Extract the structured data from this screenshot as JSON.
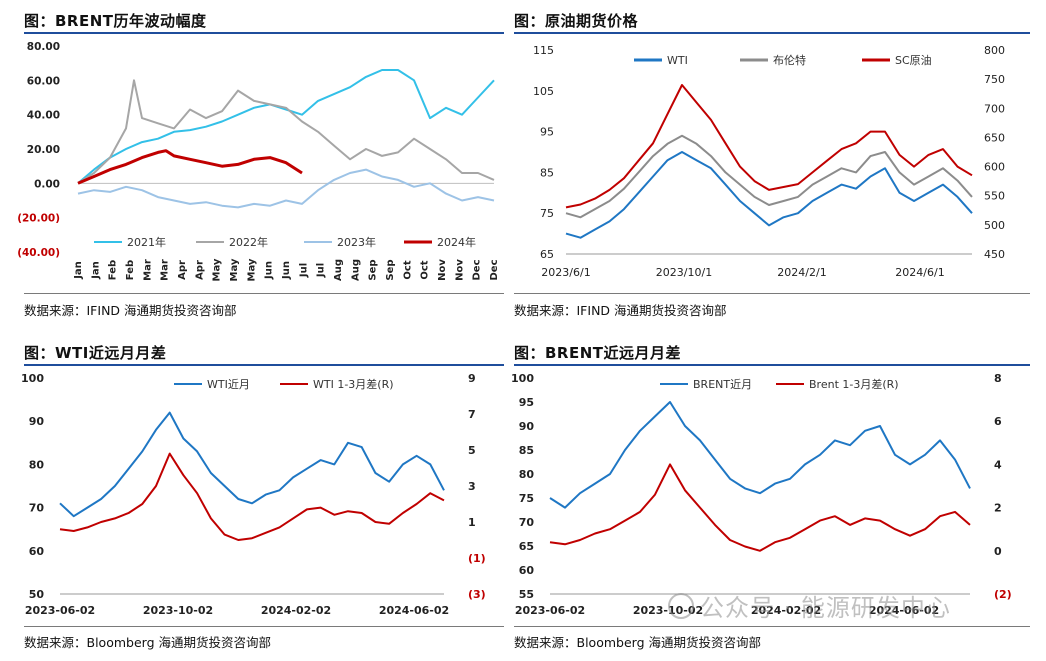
{
  "panels": [
    {
      "title": "图：BRENT历年波动幅度",
      "source": "数据来源：IFIND   海通期货投资咨询部"
    },
    {
      "title": "图：原油期货价格",
      "source": "数据来源：IFIND   海通期货投资咨询部"
    },
    {
      "title": "图：WTI近远月月差",
      "source": "数据来源：Bloomberg   海通期货投资咨询部"
    },
    {
      "title": "图：BRENT近远月月差",
      "source": "数据来源：Bloomberg   海通期货投资咨询部"
    }
  ],
  "watermark": "公众号 · 能源研发中心",
  "chart_data": [
    {
      "type": "line",
      "title": "图：BRENT历年波动幅度",
      "ylim": [
        -40,
        80
      ],
      "y_ticks": [
        "80.00",
        "60.00",
        "40.00",
        "20.00",
        "0.00",
        "(20.00)",
        "(40.00)"
      ],
      "x_ticks": [
        "Jan",
        "Jan",
        "Feb",
        "Feb",
        "Mar",
        "Mar",
        "Apr",
        "Apr",
        "May",
        "May",
        "May",
        "Jun",
        "Jun",
        "Jul",
        "Jul",
        "Aug",
        "Aug",
        "Sep",
        "Sep",
        "Oct",
        "Oct",
        "Nov",
        "Nov",
        "Dec",
        "Dec"
      ],
      "x_domain": [
        0,
        52
      ],
      "colors": {
        "s2021": "#33c0e8",
        "s2022": "#a6a6a6",
        "s2023": "#9dc3e6",
        "s2024": "#c00000"
      },
      "series": [
        {
          "name": "2021年",
          "x": [
            0,
            2,
            4,
            6,
            8,
            10,
            12,
            14,
            16,
            18,
            20,
            22,
            24,
            26,
            28,
            30,
            32,
            34,
            36,
            38,
            40,
            42,
            44,
            46,
            48,
            50,
            52
          ],
          "values": [
            0,
            8,
            15,
            20,
            24,
            26,
            30,
            31,
            33,
            36,
            40,
            44,
            46,
            43,
            40,
            48,
            52,
            56,
            62,
            66,
            66,
            60,
            38,
            44,
            40,
            50,
            60
          ]
        },
        {
          "name": "2022年",
          "x": [
            0,
            2,
            4,
            6,
            7,
            8,
            10,
            12,
            14,
            16,
            18,
            20,
            22,
            24,
            26,
            28,
            30,
            32,
            34,
            36,
            38,
            40,
            42,
            44,
            46,
            48,
            50,
            52
          ],
          "values": [
            0,
            6,
            15,
            32,
            60,
            38,
            35,
            32,
            43,
            38,
            42,
            54,
            48,
            46,
            44,
            36,
            30,
            22,
            14,
            20,
            16,
            18,
            26,
            20,
            14,
            6,
            6,
            2
          ]
        },
        {
          "name": "2023年",
          "x": [
            0,
            2,
            4,
            6,
            8,
            10,
            12,
            14,
            16,
            18,
            20,
            22,
            24,
            26,
            28,
            30,
            32,
            34,
            36,
            38,
            40,
            42,
            44,
            46,
            48,
            50,
            52
          ],
          "values": [
            -6,
            -4,
            -5,
            -2,
            -4,
            -8,
            -10,
            -12,
            -11,
            -13,
            -14,
            -12,
            -13,
            -10,
            -12,
            -4,
            2,
            6,
            8,
            4,
            2,
            -2,
            0,
            -6,
            -10,
            -8,
            -10
          ]
        },
        {
          "name": "2024年",
          "x": [
            0,
            2,
            4,
            6,
            8,
            10,
            11,
            12,
            14,
            16,
            18,
            20,
            22,
            24,
            26,
            28
          ],
          "values": [
            0,
            4,
            8,
            11,
            15,
            18,
            19,
            16,
            14,
            12,
            10,
            11,
            14,
            15,
            12,
            6
          ]
        }
      ]
    },
    {
      "type": "line",
      "title": "图：原油期货价格",
      "x_ticks": [
        "2023/6/1",
        "2023/10/1",
        "2024/2/1",
        "2024/6/1"
      ],
      "y_left_ticks": [
        "115",
        "105",
        "95",
        "85",
        "75",
        "65"
      ],
      "y_right_ticks": [
        "800",
        "750",
        "700",
        "650",
        "600",
        "550",
        "500",
        "450"
      ],
      "ylim_left": [
        65,
        115
      ],
      "ylim_right": [
        450,
        800
      ],
      "x_domain": [
        0,
        14
      ],
      "colors": {
        "wti": "#1f77c4",
        "brent": "#8c8c8c",
        "sc": "#c00000"
      },
      "series": [
        {
          "name": "WTI",
          "axis": "left",
          "x": [
            0,
            0.5,
            1,
            1.5,
            2,
            2.5,
            3,
            3.5,
            4,
            4.5,
            5,
            5.5,
            6,
            6.5,
            7,
            7.5,
            8,
            8.5,
            9,
            9.5,
            10,
            10.5,
            11,
            11.5,
            12,
            12.5,
            13,
            13.5,
            14
          ],
          "values": [
            70,
            69,
            71,
            73,
            76,
            80,
            84,
            88,
            90,
            88,
            86,
            82,
            78,
            75,
            72,
            74,
            75,
            78,
            80,
            82,
            81,
            84,
            86,
            80,
            78,
            80,
            82,
            79,
            75
          ]
        },
        {
          "name": "布伦特",
          "axis": "left",
          "x": [
            0,
            0.5,
            1,
            1.5,
            2,
            2.5,
            3,
            3.5,
            4,
            4.5,
            5,
            5.5,
            6,
            6.5,
            7,
            7.5,
            8,
            8.5,
            9,
            9.5,
            10,
            10.5,
            11,
            11.5,
            12,
            12.5,
            13,
            13.5,
            14
          ],
          "values": [
            75,
            74,
            76,
            78,
            81,
            85,
            89,
            92,
            94,
            92,
            89,
            85,
            82,
            79,
            77,
            78,
            79,
            82,
            84,
            86,
            85,
            89,
            90,
            85,
            82,
            84,
            86,
            83,
            79
          ]
        },
        {
          "name": "SC原油",
          "axis": "right",
          "x": [
            0,
            0.5,
            1,
            1.5,
            2,
            2.5,
            3,
            3.5,
            4,
            4.5,
            5,
            5.5,
            6,
            6.5,
            7,
            7.5,
            8,
            8.5,
            9,
            9.5,
            10,
            10.5,
            11,
            11.5,
            12,
            12.5,
            13,
            13.5,
            14
          ],
          "values": [
            530,
            535,
            545,
            560,
            580,
            610,
            640,
            690,
            740,
            710,
            680,
            640,
            600,
            575,
            560,
            565,
            570,
            590,
            610,
            630,
            640,
            660,
            660,
            620,
            600,
            620,
            630,
            600,
            585
          ]
        }
      ]
    },
    {
      "type": "line",
      "title": "图：WTI近远月月差",
      "x_ticks": [
        "2023-06-02",
        "2023-10-02",
        "2024-02-02",
        "2024-06-02"
      ],
      "y_left_ticks": [
        "100",
        "90",
        "80",
        "70",
        "60",
        "50"
      ],
      "y_right_ticks": [
        "9",
        "7",
        "5",
        "3",
        "1",
        "(1)",
        "(3)"
      ],
      "ylim_left": [
        50,
        100
      ],
      "ylim_right": [
        -3,
        9
      ],
      "x_domain": [
        0,
        14
      ],
      "colors": {
        "near": "#1f77c4",
        "spread": "#c00000"
      },
      "series": [
        {
          "name": "WTI近月",
          "axis": "left",
          "x": [
            0,
            0.5,
            1,
            1.5,
            2,
            2.5,
            3,
            3.5,
            4,
            4.5,
            5,
            5.5,
            6,
            6.5,
            7,
            7.5,
            8,
            8.5,
            9,
            9.5,
            10,
            10.5,
            11,
            11.5,
            12,
            12.5,
            13,
            13.5,
            14
          ],
          "values": [
            71,
            68,
            70,
            72,
            75,
            79,
            83,
            88,
            92,
            86,
            83,
            78,
            75,
            72,
            71,
            73,
            74,
            77,
            79,
            81,
            80,
            85,
            84,
            78,
            76,
            80,
            82,
            80,
            74
          ]
        },
        {
          "name": "WTI 1-3月差(R)",
          "axis": "right",
          "x": [
            0,
            0.5,
            1,
            1.5,
            2,
            2.5,
            3,
            3.5,
            4,
            4.5,
            5,
            5.5,
            6,
            6.5,
            7,
            7.5,
            8,
            8.5,
            9,
            9.5,
            10,
            10.5,
            11,
            11.5,
            12,
            12.5,
            13,
            13.5,
            14
          ],
          "values": [
            0.6,
            0.5,
            0.7,
            1.0,
            1.2,
            1.5,
            2.0,
            3.0,
            4.8,
            3.6,
            2.6,
            1.2,
            0.3,
            0,
            0.1,
            0.4,
            0.7,
            1.2,
            1.7,
            1.8,
            1.4,
            1.6,
            1.5,
            1.0,
            0.9,
            1.5,
            2.0,
            2.6,
            2.2
          ]
        }
      ]
    },
    {
      "type": "line",
      "title": "图：BRENT近远月月差",
      "x_ticks": [
        "2023-06-02",
        "2023-10-02",
        "2024-02-02",
        "2024-06-02"
      ],
      "y_left_ticks": [
        "100",
        "95",
        "90",
        "85",
        "80",
        "75",
        "70",
        "65",
        "60",
        "55"
      ],
      "y_right_ticks": [
        "8",
        "6",
        "4",
        "2",
        "0",
        "(2)"
      ],
      "ylim_left": [
        55,
        100
      ],
      "ylim_right": [
        -2,
        8
      ],
      "x_domain": [
        0,
        14
      ],
      "colors": {
        "near": "#1f77c4",
        "spread": "#c00000"
      },
      "series": [
        {
          "name": "BRENT近月",
          "axis": "left",
          "x": [
            0,
            0.5,
            1,
            1.5,
            2,
            2.5,
            3,
            3.5,
            4,
            4.5,
            5,
            5.5,
            6,
            6.5,
            7,
            7.5,
            8,
            8.5,
            9,
            9.5,
            10,
            10.5,
            11,
            11.5,
            12,
            12.5,
            13,
            13.5,
            14
          ],
          "values": [
            75,
            73,
            76,
            78,
            80,
            85,
            89,
            92,
            95,
            90,
            87,
            83,
            79,
            77,
            76,
            78,
            79,
            82,
            84,
            87,
            86,
            89,
            90,
            84,
            82,
            84,
            87,
            83,
            77
          ]
        },
        {
          "name": "Brent 1-3月差(R)",
          "axis": "right",
          "x": [
            0,
            0.5,
            1,
            1.5,
            2,
            2.5,
            3,
            3.5,
            4,
            4.5,
            5,
            5.5,
            6,
            6.5,
            7,
            7.5,
            8,
            8.5,
            9,
            9.5,
            10,
            10.5,
            11,
            11.5,
            12,
            12.5,
            13,
            13.5,
            14
          ],
          "values": [
            0.4,
            0.3,
            0.5,
            0.8,
            1.0,
            1.4,
            1.8,
            2.6,
            4.0,
            2.8,
            2.0,
            1.2,
            0.5,
            0.2,
            0.0,
            0.4,
            0.6,
            1.0,
            1.4,
            1.6,
            1.2,
            1.5,
            1.4,
            1.0,
            0.7,
            1.0,
            1.6,
            1.8,
            1.2
          ]
        }
      ]
    }
  ]
}
